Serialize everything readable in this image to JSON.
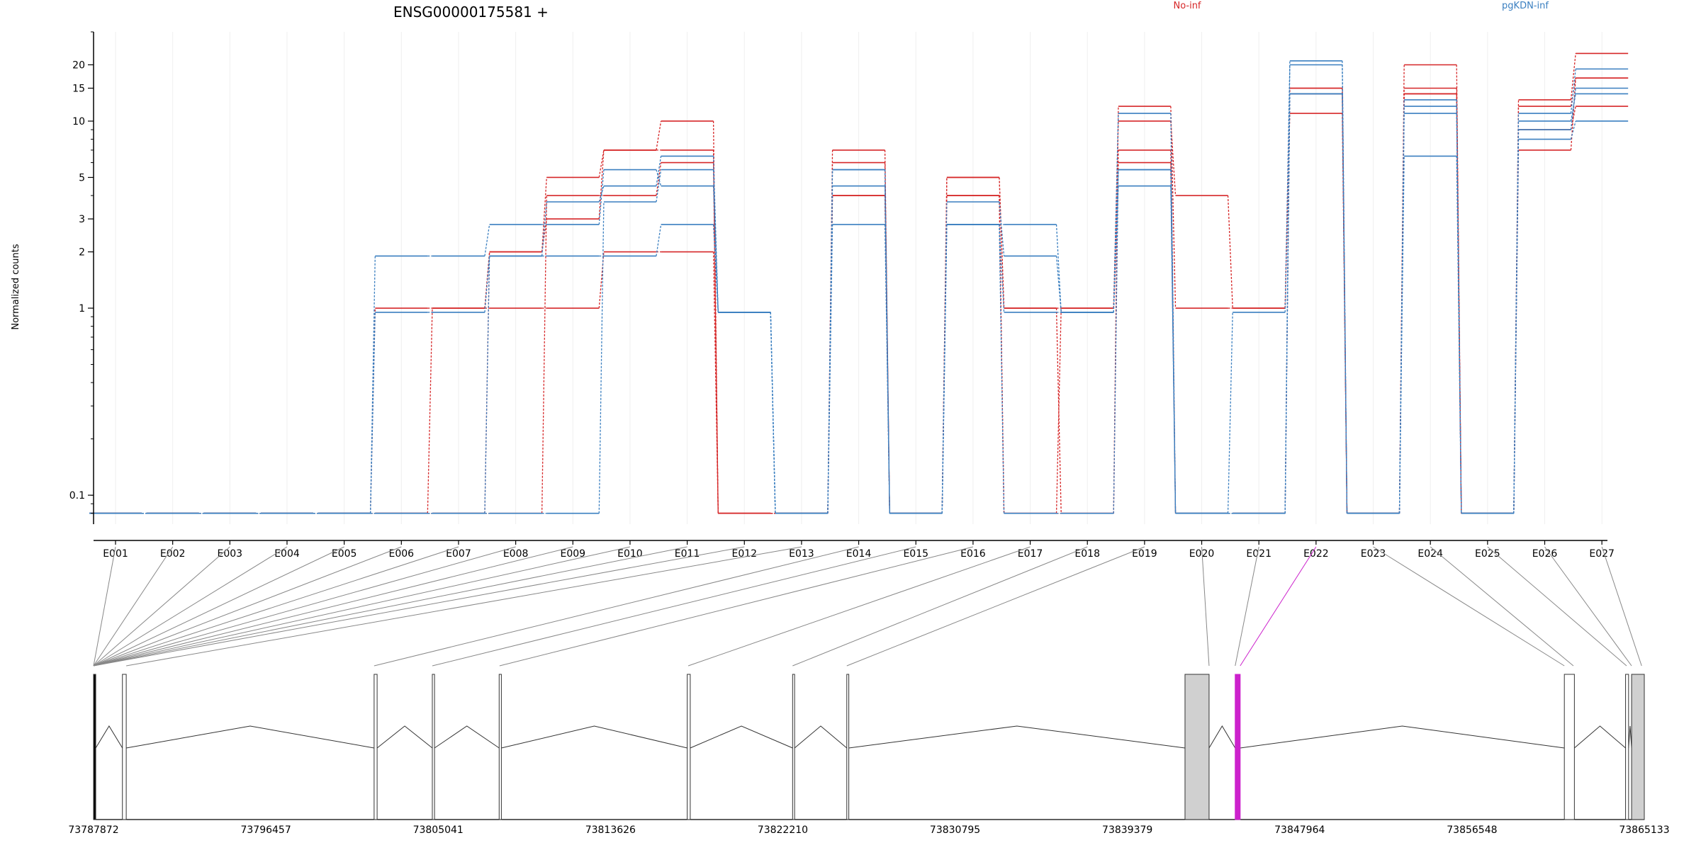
{
  "chart_data": {
    "type": "line",
    "title": "ENSG00000175581 +",
    "ylabel": "Normalized counts",
    "xlabel": "",
    "yscale": "log",
    "ylim": [
      0.07,
      30
    ],
    "grid": "vertical",
    "legend": [
      {
        "name": "No-inf",
        "color": "#d62728",
        "placement": "top"
      },
      {
        "name": "pgKDN-inf",
        "color": "#3a7fc0",
        "placement": "top-right"
      }
    ],
    "yticks": [
      {
        "value": 0.1,
        "label": "0.1"
      },
      {
        "value": 1,
        "label": "1"
      },
      {
        "value": 2,
        "label": "2"
      },
      {
        "value": 3,
        "label": "3"
      },
      {
        "value": 5,
        "label": "5"
      },
      {
        "value": 10,
        "label": "10"
      },
      {
        "value": 15,
        "label": "15"
      },
      {
        "value": 20,
        "label": "20"
      }
    ],
    "categories": [
      "E001",
      "E002",
      "E003",
      "E004",
      "E005",
      "E006",
      "E007",
      "E008",
      "E009",
      "E010",
      "E011",
      "E012",
      "E013",
      "E014",
      "E015",
      "E016",
      "E017",
      "E018",
      "E019",
      "E020",
      "E021",
      "E022",
      "E023",
      "E024",
      "E025",
      "E026",
      "E027"
    ],
    "series": [
      {
        "group": "No-inf",
        "color": "#d62728",
        "values": [
          0.08,
          0.08,
          0.08,
          0.08,
          0.08,
          1,
          1,
          2,
          5,
          7,
          10,
          0.08,
          0.08,
          4,
          0.08,
          5,
          1,
          1,
          10,
          4,
          1,
          15,
          0.08,
          20,
          0.08,
          13,
          23
        ]
      },
      {
        "group": "No-inf",
        "color": "#d62728",
        "values": [
          0.08,
          0.08,
          0.08,
          0.08,
          0.08,
          0.08,
          1,
          1,
          1,
          2,
          2,
          0.08,
          0.08,
          7,
          0.08,
          4,
          0.08,
          0.08,
          12,
          1,
          1,
          11,
          0.08,
          15,
          0.08,
          12,
          17
        ]
      },
      {
        "group": "No-inf",
        "color": "#d62728",
        "values": [
          0.08,
          0.08,
          0.08,
          0.08,
          0.08,
          0.08,
          0.08,
          2,
          3,
          7,
          7,
          0.08,
          0.08,
          6,
          0.08,
          5,
          1,
          0.08,
          7,
          0.08,
          0.08,
          15,
          0.08,
          14,
          0.08,
          9,
          12
        ]
      },
      {
        "group": "No-inf",
        "color": "#d62728",
        "values": [
          0.08,
          0.08,
          0.08,
          0.08,
          0.08,
          0.08,
          0.08,
          0.08,
          4,
          4,
          6,
          0.08,
          0.08,
          4,
          0.08,
          4,
          0.08,
          1,
          6,
          0.08,
          0.08,
          14,
          0.08,
          14,
          0.08,
          7,
          17
        ]
      },
      {
        "group": "pgKDN-inf",
        "color": "#3a7fc0",
        "values": [
          0.08,
          0.08,
          0.08,
          0.08,
          0.08,
          1.9,
          1.9,
          2.8,
          2.8,
          5.5,
          4.5,
          0.95,
          0.08,
          5.5,
          0.08,
          2.8,
          2.8,
          0.95,
          11,
          0.08,
          0.08,
          21,
          0.08,
          12,
          0.08,
          8,
          10
        ]
      },
      {
        "group": "pgKDN-inf",
        "color": "#3a7fc0",
        "values": [
          0.08,
          0.08,
          0.08,
          0.08,
          0.08,
          0.95,
          0.95,
          1.9,
          3.7,
          4.5,
          6.5,
          0.95,
          0.08,
          4.5,
          0.08,
          3.7,
          1.9,
          0.95,
          5.5,
          0.08,
          0.95,
          20,
          0.08,
          11,
          0.08,
          10,
          14
        ]
      },
      {
        "group": "pgKDN-inf",
        "color": "#3a7fc0",
        "values": [
          0.08,
          0.08,
          0.08,
          0.08,
          0.08,
          0.08,
          0.08,
          1.9,
          1.9,
          1.9,
          2.8,
          0.95,
          0.08,
          2.8,
          0.08,
          2.8,
          0.95,
          0.95,
          4.5,
          0.08,
          0.08,
          14,
          0.08,
          6.5,
          0.08,
          9,
          15
        ]
      },
      {
        "group": "pgKDN-inf",
        "color": "#3a7fc0",
        "values": [
          0.08,
          0.08,
          0.08,
          0.08,
          0.08,
          0.08,
          0.08,
          0.08,
          0.08,
          3.7,
          5.5,
          0.95,
          0.08,
          5.5,
          0.08,
          2.8,
          0.08,
          0.08,
          5.5,
          0.08,
          0.08,
          14,
          0.08,
          13,
          0.08,
          11,
          19
        ]
      }
    ],
    "gene_model": {
      "coordinate_labels": [
        "73787872",
        "73796457",
        "73805041",
        "73813626",
        "73822210",
        "73830795",
        "73839379",
        "73847964",
        "73856548",
        "73865133"
      ],
      "gene_start": 73787872,
      "gene_end": 73865133,
      "exons": [
        {
          "start": 73787872,
          "end": 73787980,
          "fill": "#000000"
        },
        {
          "start": 73789310,
          "end": 73789500,
          "fill": "#ffffff"
        },
        {
          "start": 73801850,
          "end": 73802000,
          "fill": "#ffffff"
        },
        {
          "start": 73804750,
          "end": 73804860,
          "fill": "#ffffff"
        },
        {
          "start": 73808080,
          "end": 73808190,
          "fill": "#ffffff"
        },
        {
          "start": 73817450,
          "end": 73817600,
          "fill": "#ffffff"
        },
        {
          "start": 73822700,
          "end": 73822800,
          "fill": "#ffffff"
        },
        {
          "start": 73825400,
          "end": 73825500,
          "fill": "#ffffff"
        },
        {
          "start": 73842250,
          "end": 73843450,
          "fill": "#d0d0d0"
        },
        {
          "start": 73844750,
          "end": 73845000,
          "fill": "#cc22cc"
        },
        {
          "start": 73861150,
          "end": 73861650,
          "fill": "#ffffff"
        },
        {
          "start": 73864200,
          "end": 73864350,
          "fill": "#ffffff"
        },
        {
          "start": 73864500,
          "end": 73865133,
          "fill": "#d0d0d0"
        }
      ],
      "exon_bin_targets": [
        73787872,
        73787872,
        73787872,
        73787872,
        73787872,
        73787872,
        73787872,
        73787872,
        73787872,
        73787872,
        73787872,
        73787872,
        73789500,
        73801850,
        73804750,
        73808100,
        73817500,
        73822700,
        73825400,
        73843450,
        73844750,
        73845000,
        73861150,
        73861600,
        73864250,
        73864500,
        73865000
      ],
      "highlight_bin": "E022",
      "highlight_color": "#cc22cc"
    }
  }
}
